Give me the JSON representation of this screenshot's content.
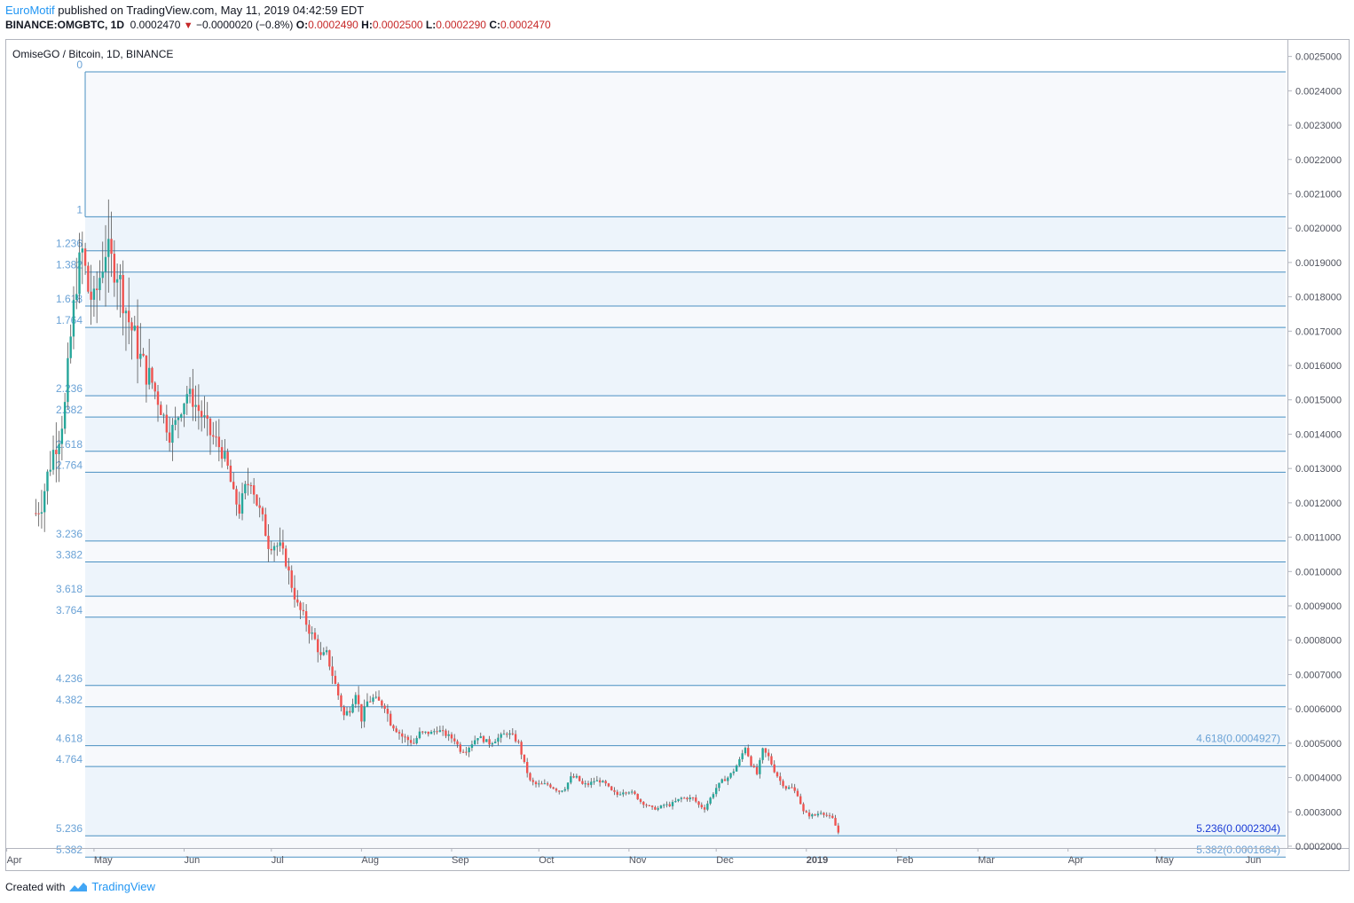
{
  "header": {
    "author": "EuroMotif",
    "published_text": "published on TradingView.com, May 11, 2019 04:42:59 EDT",
    "symbol": "BINANCE:OMGBTC, 1D",
    "last": "0.0002470",
    "change": "−0.0000020 (−0.8%)",
    "o_label": "O:",
    "o_val": "0.0002490",
    "h_label": "H:",
    "h_val": "0.0002500",
    "l_label": "L:",
    "l_val": "0.0002290",
    "c_label": "C:",
    "c_val": "0.0002470"
  },
  "footer": {
    "created_with": "Created with",
    "brand": "TradingView"
  },
  "colors": {
    "up": "#26a69a",
    "down": "#ef5350",
    "fib_line": "#4a90c2",
    "fib_label": "#6aa2d6",
    "fib_band": "#edf4fb",
    "axis_text": "#50535e"
  },
  "chart_data": {
    "type": "candlestick",
    "title": "OmiseGO / Bitcoin, 1D, BINANCE",
    "x_labels": [
      "Apr",
      "May",
      "Jun",
      "Jul",
      "Aug",
      "Sep",
      "Oct",
      "Nov",
      "Dec",
      "2019",
      "Feb",
      "Mar",
      "Apr",
      "May",
      "Jun"
    ],
    "y_ticks": [
      "0.0025000",
      "0.0024000",
      "0.0023000",
      "0.0022000",
      "0.0021000",
      "0.0020000",
      "0.0019000",
      "0.0018000",
      "0.0017000",
      "0.0016000",
      "0.0015000",
      "0.0014000",
      "0.0013000",
      "0.0012000",
      "0.0011000",
      "0.0010000",
      "0.0009000",
      "0.0008000",
      "0.0007000",
      "0.0006000",
      "0.0005000",
      "0.0004000",
      "0.0003000",
      "0.0002000"
    ],
    "ylim": [
      0.00014,
      0.00259
    ],
    "fib_levels": [
      {
        "label": "0",
        "price": 0.002455
      },
      {
        "label": "1",
        "price": 0.002033
      },
      {
        "label": "1.236",
        "price": 0.001934
      },
      {
        "label": "1.382",
        "price": 0.001872
      },
      {
        "label": "1.618",
        "price": 0.001773
      },
      {
        "label": "1.764",
        "price": 0.001711
      },
      {
        "label": "2.236",
        "price": 0.001512
      },
      {
        "label": "2.382",
        "price": 0.00145
      },
      {
        "label": "2.618",
        "price": 0.00135
      },
      {
        "label": "2.764",
        "price": 0.001289
      },
      {
        "label": "3.236",
        "price": 0.001089
      },
      {
        "label": "3.382",
        "price": 0.001028
      },
      {
        "label": "3.618",
        "price": 0.000928
      },
      {
        "label": "3.764",
        "price": 0.000867
      },
      {
        "label": "4.236",
        "price": 0.000668
      },
      {
        "label": "4.382",
        "price": 0.000606
      },
      {
        "label": "4.618",
        "price": 0.0004927
      },
      {
        "label": "4.764",
        "price": 0.000432
      },
      {
        "label": "5.236",
        "price": 0.0002304
      },
      {
        "label": "5.382",
        "price": 0.0001684
      }
    ],
    "fib_right_labels": [
      {
        "text": "4.618(0.0004927)",
        "price": 0.0004927,
        "color": "#6aa2d6"
      },
      {
        "text": "5.236(0.0002304)",
        "price": 0.0002304,
        "color": "#1a3bd6"
      },
      {
        "text": "5.382(0.0001684)",
        "price": 0.0001684,
        "color": "#6aa2d6"
      }
    ],
    "price_path": [
      [
        0,
        0.00117
      ],
      [
        2,
        0.0012
      ],
      [
        4,
        0.00128
      ],
      [
        6,
        0.00135
      ],
      [
        8,
        0.0014
      ],
      [
        10,
        0.00148
      ],
      [
        12,
        0.00168
      ],
      [
        14,
        0.00185
      ],
      [
        16,
        0.00193
      ],
      [
        18,
        0.00182
      ],
      [
        20,
        0.00178
      ],
      [
        22,
        0.00186
      ],
      [
        24,
        0.00194
      ],
      [
        26,
        0.0019
      ],
      [
        28,
        0.00188
      ],
      [
        30,
        0.0018
      ],
      [
        32,
        0.00173
      ],
      [
        34,
        0.00168
      ],
      [
        36,
        0.00162
      ],
      [
        38,
        0.00158
      ],
      [
        40,
        0.00155
      ],
      [
        42,
        0.0015
      ],
      [
        44,
        0.00145
      ],
      [
        46,
        0.0014
      ],
      [
        48,
        0.00143
      ],
      [
        50,
        0.00148
      ],
      [
        52,
        0.00152
      ],
      [
        54,
        0.0015
      ],
      [
        56,
        0.00147
      ],
      [
        58,
        0.00144
      ],
      [
        60,
        0.0014
      ],
      [
        62,
        0.00138
      ],
      [
        64,
        0.00135
      ],
      [
        66,
        0.0013
      ],
      [
        68,
        0.00122
      ],
      [
        70,
        0.00118
      ],
      [
        72,
        0.00124
      ],
      [
        74,
        0.00127
      ],
      [
        76,
        0.0012
      ],
      [
        78,
        0.00115
      ],
      [
        80,
        0.00108
      ],
      [
        82,
        0.00108
      ],
      [
        84,
        0.00107
      ],
      [
        86,
        0.00103
      ],
      [
        88,
        0.00096
      ],
      [
        90,
        0.0009
      ],
      [
        92,
        0.00087
      ],
      [
        94,
        0.00083
      ],
      [
        96,
        0.0008
      ],
      [
        98,
        0.00075
      ],
      [
        100,
        0.00076
      ],
      [
        102,
        0.0007
      ],
      [
        104,
        0.00064
      ],
      [
        106,
        0.00058
      ],
      [
        108,
        0.0006
      ],
      [
        110,
        0.00065
      ],
      [
        112,
        0.00057
      ],
      [
        114,
        0.00062
      ],
      [
        116,
        0.00063
      ],
      [
        118,
        0.00062
      ],
      [
        120,
        0.00061
      ],
      [
        122,
        0.00056
      ],
      [
        124,
        0.00054
      ],
      [
        126,
        0.00052
      ],
      [
        128,
        0.00051
      ],
      [
        130,
        0.0005
      ],
      [
        132,
        0.00053
      ],
      [
        134,
        0.00053
      ],
      [
        136,
        0.00053
      ],
      [
        138,
        0.00054
      ],
      [
        140,
        0.00053
      ],
      [
        142,
        0.00052
      ],
      [
        144,
        0.00051
      ],
      [
        146,
        0.00048
      ],
      [
        148,
        0.00048
      ],
      [
        150,
        0.0005
      ],
      [
        152,
        0.00052
      ],
      [
        154,
        0.00051
      ],
      [
        156,
        0.0005
      ],
      [
        158,
        0.00051
      ],
      [
        160,
        0.00052
      ],
      [
        162,
        0.00053
      ],
      [
        164,
        0.00052
      ],
      [
        166,
        0.0005
      ],
      [
        168,
        0.00044
      ],
      [
        170,
        0.00039
      ],
      [
        172,
        0.00038
      ],
      [
        174,
        0.00038
      ],
      [
        176,
        0.00038
      ],
      [
        178,
        0.00037
      ],
      [
        180,
        0.00036
      ],
      [
        182,
        0.00037
      ],
      [
        184,
        0.0004
      ],
      [
        186,
        0.0004
      ],
      [
        188,
        0.00038
      ],
      [
        190,
        0.00038
      ],
      [
        192,
        0.00039
      ],
      [
        194,
        0.00039
      ],
      [
        196,
        0.00038
      ],
      [
        198,
        0.00036
      ],
      [
        200,
        0.00035
      ],
      [
        202,
        0.00036
      ],
      [
        204,
        0.00036
      ],
      [
        206,
        0.00035
      ],
      [
        208,
        0.00033
      ],
      [
        210,
        0.00032
      ],
      [
        212,
        0.00031
      ],
      [
        214,
        0.00031
      ],
      [
        216,
        0.00032
      ],
      [
        218,
        0.00032
      ],
      [
        220,
        0.00033
      ],
      [
        222,
        0.00034
      ],
      [
        224,
        0.00034
      ],
      [
        226,
        0.00034
      ],
      [
        228,
        0.00032
      ],
      [
        230,
        0.00031
      ],
      [
        232,
        0.00034
      ],
      [
        234,
        0.00037
      ],
      [
        236,
        0.00039
      ],
      [
        238,
        0.0004
      ],
      [
        240,
        0.00042
      ],
      [
        242,
        0.00045
      ],
      [
        244,
        0.00049
      ],
      [
        246,
        0.00044
      ],
      [
        248,
        0.00041
      ],
      [
        250,
        0.00048
      ],
      [
        252,
        0.00046
      ],
      [
        254,
        0.00042
      ],
      [
        256,
        0.00039
      ],
      [
        258,
        0.00037
      ],
      [
        260,
        0.00037
      ],
      [
        262,
        0.00035
      ],
      [
        264,
        0.0003
      ],
      [
        266,
        0.00029
      ],
      [
        268,
        0.00029
      ],
      [
        270,
        0.0003
      ],
      [
        272,
        0.00029
      ],
      [
        274,
        0.00028
      ],
      [
        276,
        0.00024
      ]
    ]
  }
}
